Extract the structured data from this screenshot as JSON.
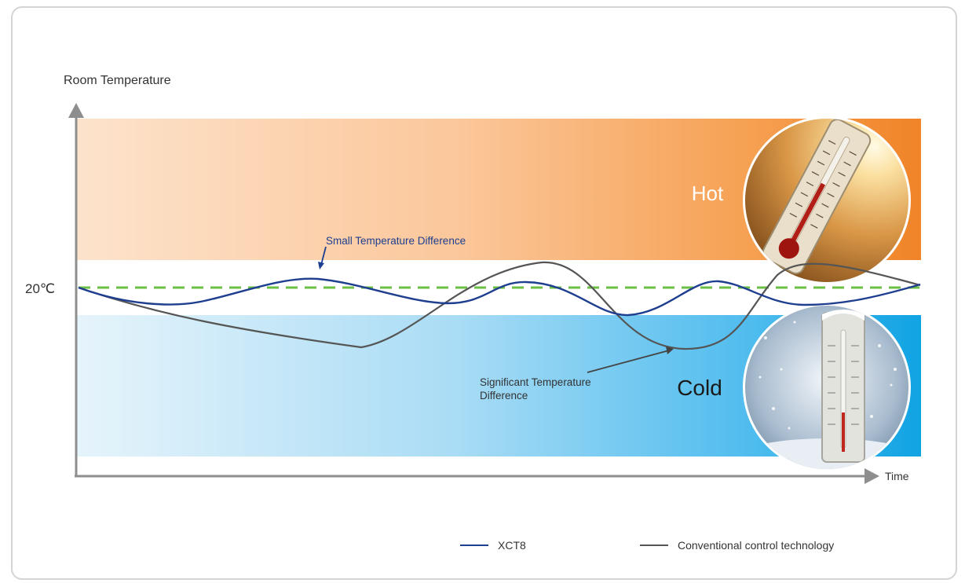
{
  "chart_data": {
    "type": "line",
    "title": "",
    "ylabel": "Room Temperature",
    "xlabel": "Time",
    "reference_label": "20℃",
    "zones": [
      {
        "name": "Hot",
        "label": "Hot"
      },
      {
        "name": "Cold",
        "label": "Cold"
      }
    ],
    "annotations": [
      {
        "text": "Small Temperature Difference",
        "color": "#1e3e8f"
      },
      {
        "text_lines": [
          "Significant Temperature",
          "Difference"
        ],
        "color": "#333333"
      }
    ],
    "series": [
      {
        "name": "XCT8",
        "color": "#1e3e8f"
      },
      {
        "name": "Conventional control technology",
        "color": "#555555"
      }
    ],
    "grid": false,
    "legend_position": "bottom"
  }
}
